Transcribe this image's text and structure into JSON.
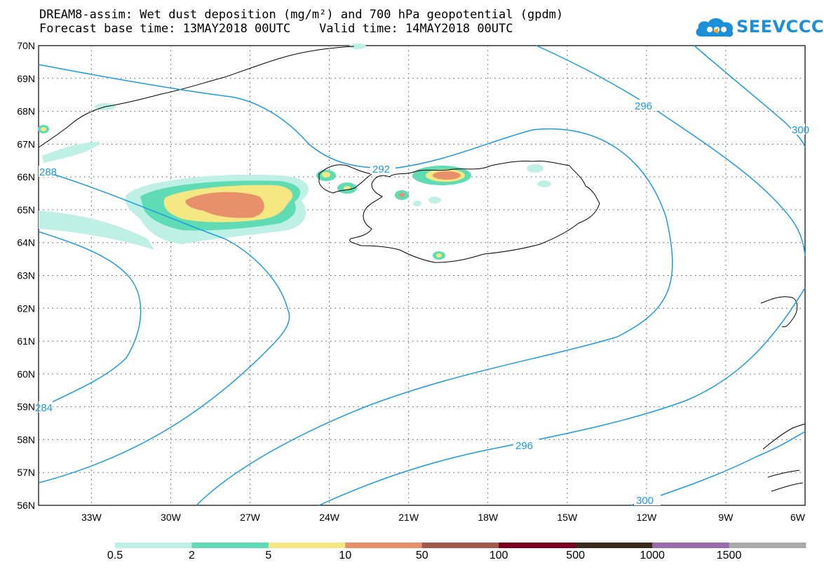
{
  "title": {
    "line1": "DREAM8-assim: Wet dust deposition (mg/m²) and 700 hPa geopotential (gpdm)",
    "line2": "Forecast base time: 13MAY2018 00UTC    Valid time: 14MAY2018 00UTC"
  },
  "logo": {
    "text": "SEEVCCC",
    "icon": "cloud-icon"
  },
  "axes": {
    "lat_labels": [
      "70N",
      "69N",
      "68N",
      "67N",
      "66N",
      "65N",
      "64N",
      "63N",
      "62N",
      "61N",
      "60N",
      "59N",
      "58N",
      "57N",
      "56N"
    ],
    "lon_labels": [
      "33W",
      "30W",
      "27W",
      "24W",
      "21W",
      "18W",
      "15W",
      "12W",
      "9W",
      "6W"
    ],
    "lat_range": [
      56,
      70
    ],
    "lon_range": [
      -35,
      -6
    ],
    "grid": "dotted"
  },
  "contours": {
    "color": "#1a9be6",
    "labels": [
      "288",
      "292",
      "296",
      "296",
      "300",
      "300",
      "284"
    ]
  },
  "legend": {
    "labels": [
      "0.5",
      "2",
      "5",
      "10",
      "50",
      "100",
      "500",
      "1000",
      "1500"
    ],
    "colors": [
      "#bff0e6",
      "#5fdcb4",
      "#f5e882",
      "#e8906a",
      "#a05a4a",
      "#7a0020",
      "#3a2a1a",
      "#9a6aaa",
      "#aaaaaa"
    ]
  },
  "chart_data": {
    "type": "map",
    "variable": "Wet dust deposition (mg/m²)",
    "overlay": "700 hPa geopotential (gpdm)",
    "contour_values": [
      284,
      288,
      292,
      296,
      300
    ],
    "dust_levels": [
      0.5,
      2,
      5,
      10,
      50,
      100,
      500,
      1000,
      1500
    ]
  }
}
